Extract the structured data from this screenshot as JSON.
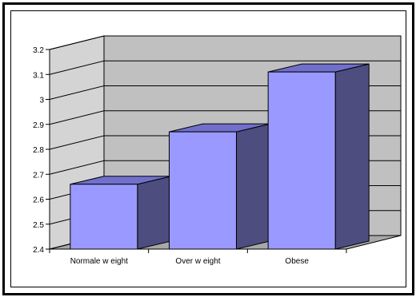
{
  "chart_data": {
    "type": "bar",
    "title": "",
    "xlabel": "",
    "ylabel": "",
    "categories": [
      "Normale w eight",
      "Over w eight",
      "Obese"
    ],
    "values": [
      2.66,
      2.87,
      3.11
    ],
    "ylim": [
      2.4,
      3.2
    ],
    "yticks": [
      "3.2",
      "3.1",
      "3",
      "2.9",
      "2.8",
      "2.7",
      "2.6",
      "2.5",
      "2.4"
    ],
    "grid": true,
    "legend": "none",
    "style": "3d-column"
  },
  "colors": {
    "bar_front": "#9999ff",
    "bar_side": "#4d4d80",
    "bar_top": "#7070cc",
    "back_wall": "#c0c0c0",
    "side_wall": "#d4d4d4",
    "floor": "#a8a8a8"
  }
}
